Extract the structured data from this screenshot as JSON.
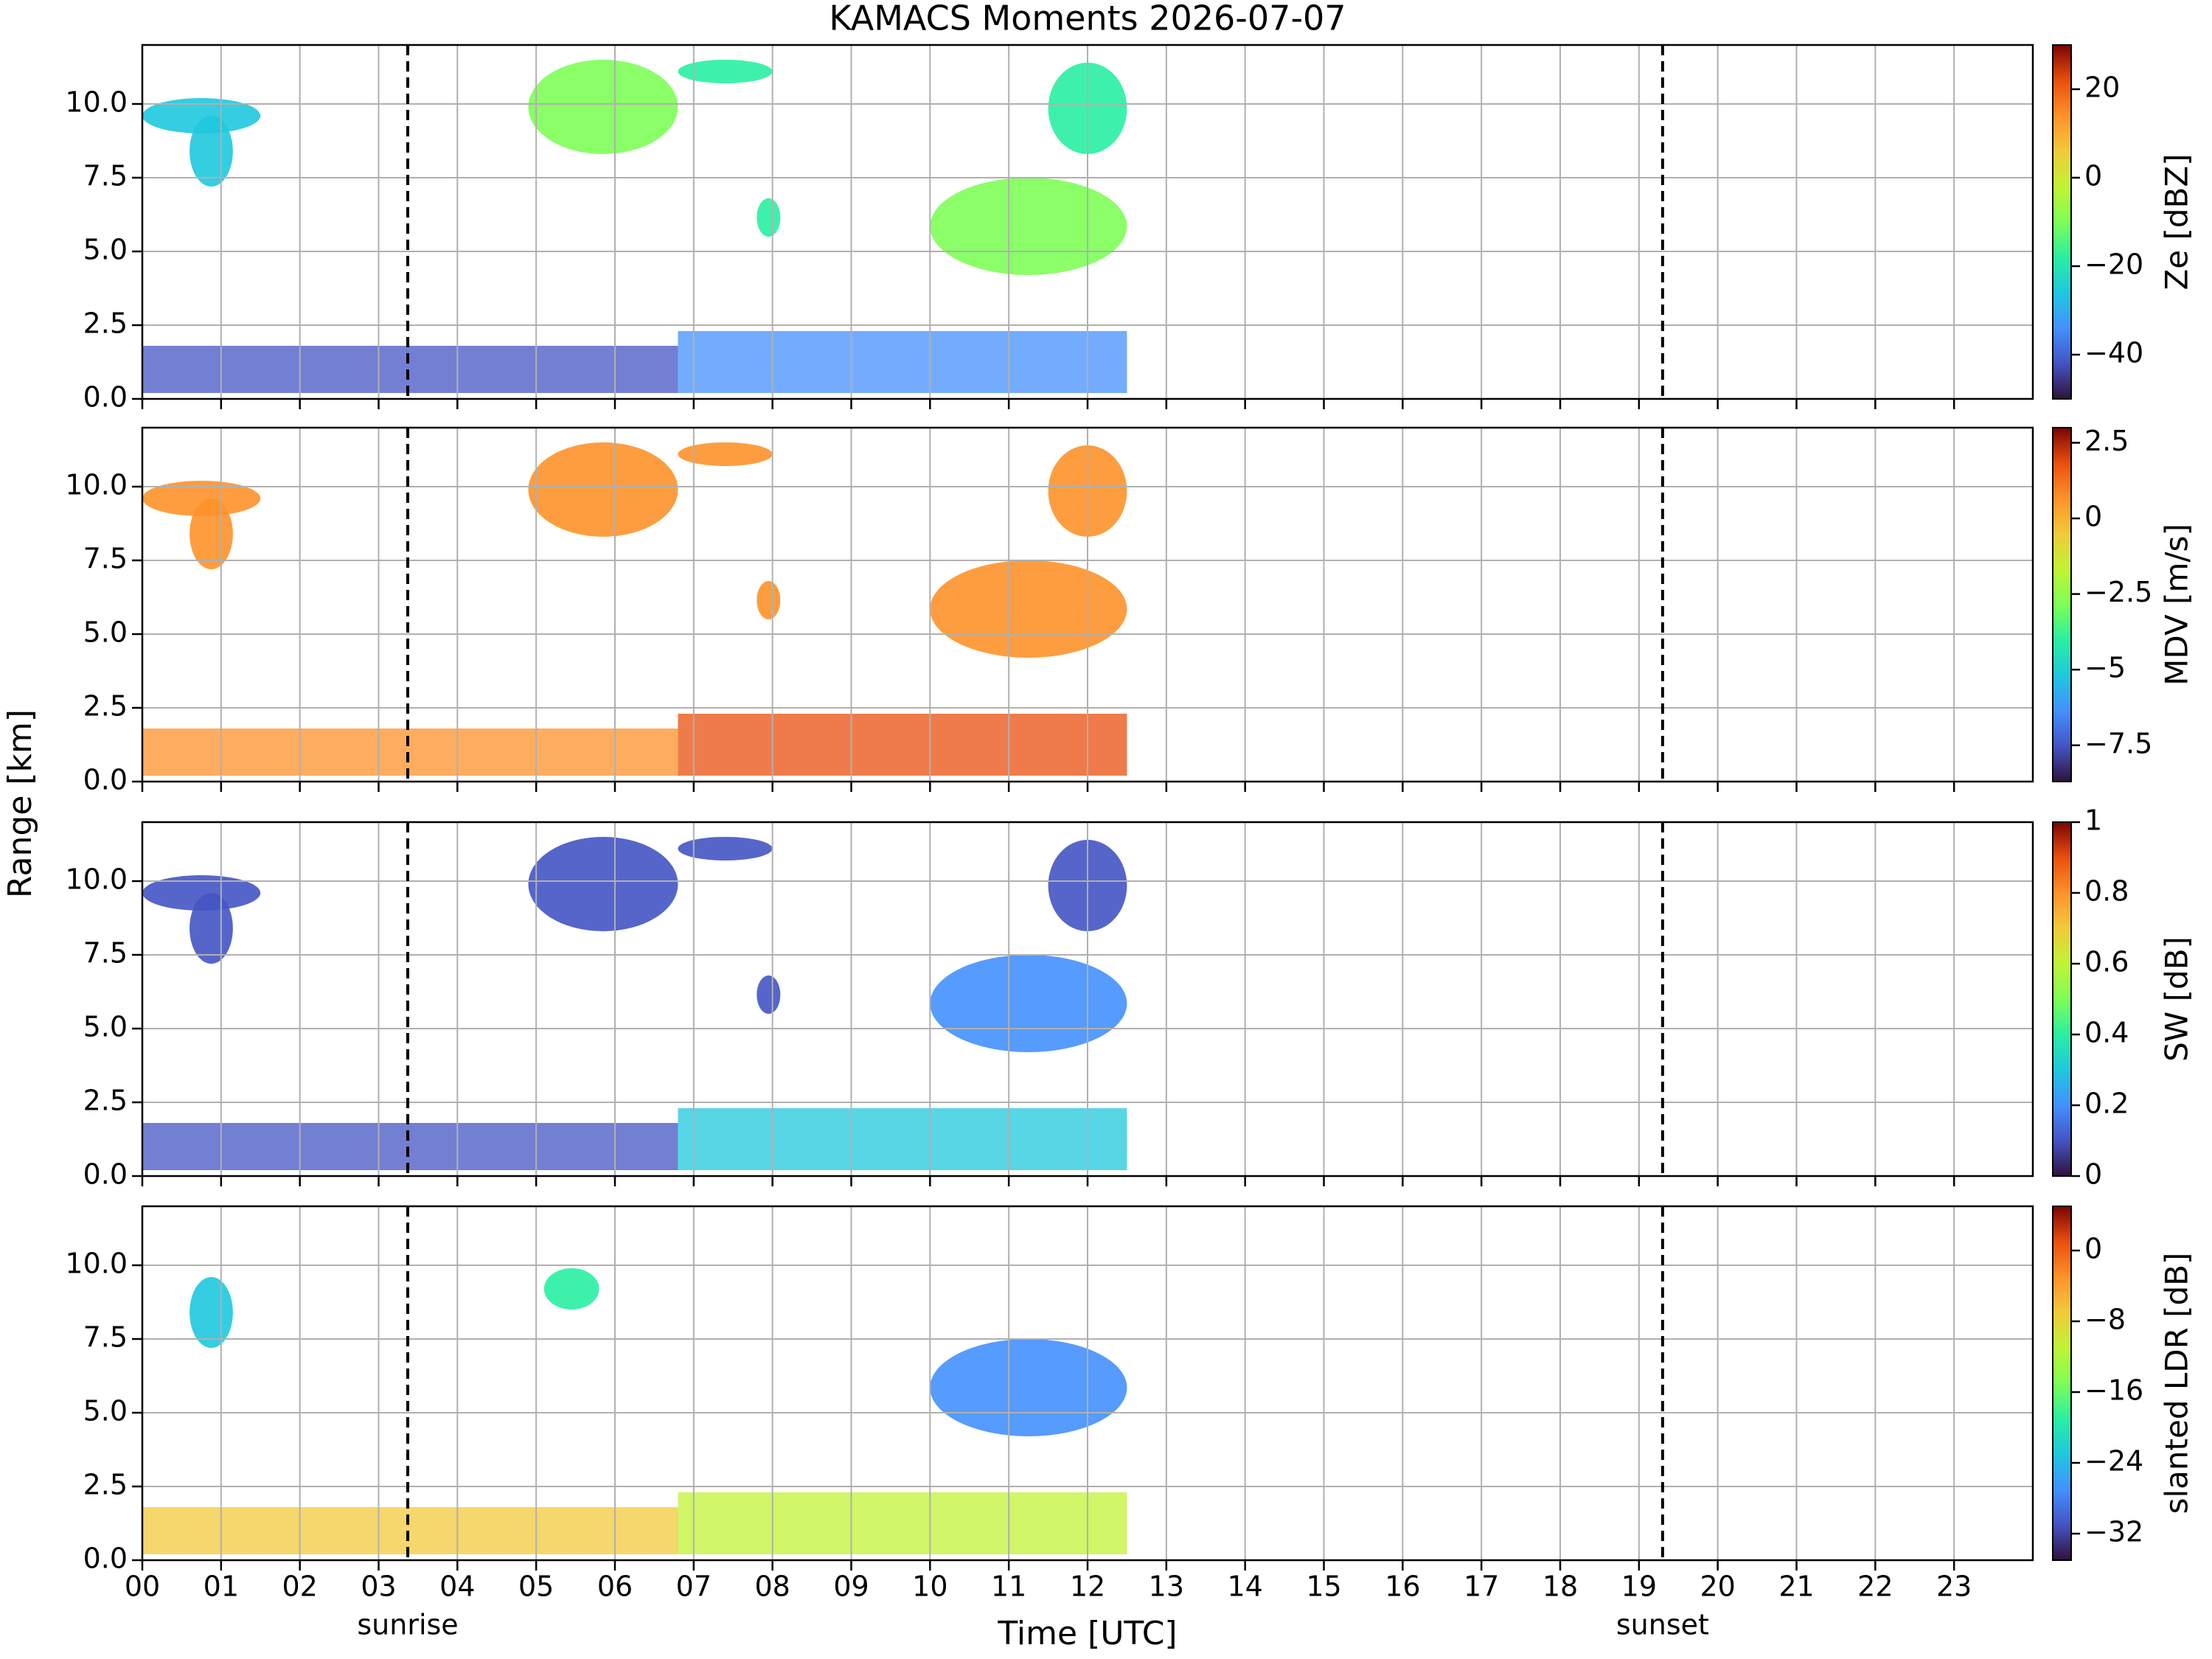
{
  "title": "KAMACS Moments 2026-07-07",
  "xlabel": "Time [UTC]",
  "ylabel": "Range [km]",
  "annotations": [
    {
      "text": "sunrise",
      "x": 3.37
    },
    {
      "text": "sunset",
      "x": 19.3
    }
  ],
  "chart_data": [
    {
      "type": "heatmap",
      "xlim": [
        0,
        24
      ],
      "ylim": [
        0,
        12
      ],
      "xticks": [
        {
          "value": 0,
          "label": "00"
        },
        {
          "value": 1,
          "label": "01"
        },
        {
          "value": 2,
          "label": "02"
        },
        {
          "value": 3,
          "label": "03"
        },
        {
          "value": 4,
          "label": "04"
        },
        {
          "value": 5,
          "label": "05"
        },
        {
          "value": 6,
          "label": "06"
        },
        {
          "value": 7,
          "label": "07"
        },
        {
          "value": 8,
          "label": "08"
        },
        {
          "value": 9,
          "label": "09"
        },
        {
          "value": 10,
          "label": "10"
        },
        {
          "value": 11,
          "label": "11"
        },
        {
          "value": 12,
          "label": "12"
        },
        {
          "value": 13,
          "label": "13"
        },
        {
          "value": 14,
          "label": "14"
        },
        {
          "value": 15,
          "label": "15"
        },
        {
          "value": 16,
          "label": "16"
        },
        {
          "value": 17,
          "label": "17"
        },
        {
          "value": 18,
          "label": "18"
        },
        {
          "value": 19,
          "label": "19"
        },
        {
          "value": 20,
          "label": "20"
        },
        {
          "value": 21,
          "label": "21"
        },
        {
          "value": 22,
          "label": "22"
        },
        {
          "value": 23,
          "label": "23"
        }
      ],
      "yticks": [
        {
          "value": 0,
          "label": "0.0"
        },
        {
          "value": 2.5,
          "label": "2.5"
        },
        {
          "value": 5,
          "label": "5.0"
        },
        {
          "value": 7.5,
          "label": "7.5"
        },
        {
          "value": 10,
          "label": "10.0"
        }
      ],
      "grid": true,
      "colorbar": {
        "label": "Ze [dBZ]",
        "cmap": "turbo",
        "lim": [
          -50,
          30
        ],
        "ticks": [
          {
            "value": -40,
            "label": "−40"
          },
          {
            "value": -20,
            "label": "−20"
          },
          0,
          20
        ]
      }
    },
    {
      "type": "heatmap",
      "xlim": [
        0,
        24
      ],
      "ylim": [
        0,
        12
      ],
      "xticks": [
        {
          "value": 0,
          "label": "00"
        },
        {
          "value": 1,
          "label": "01"
        },
        {
          "value": 2,
          "label": "02"
        },
        {
          "value": 3,
          "label": "03"
        },
        {
          "value": 4,
          "label": "04"
        },
        {
          "value": 5,
          "label": "05"
        },
        {
          "value": 6,
          "label": "06"
        },
        {
          "value": 7,
          "label": "07"
        },
        {
          "value": 8,
          "label": "08"
        },
        {
          "value": 9,
          "label": "09"
        },
        {
          "value": 10,
          "label": "10"
        },
        {
          "value": 11,
          "label": "11"
        },
        {
          "value": 12,
          "label": "12"
        },
        {
          "value": 13,
          "label": "13"
        },
        {
          "value": 14,
          "label": "14"
        },
        {
          "value": 15,
          "label": "15"
        },
        {
          "value": 16,
          "label": "16"
        },
        {
          "value": 17,
          "label": "17"
        },
        {
          "value": 18,
          "label": "18"
        },
        {
          "value": 19,
          "label": "19"
        },
        {
          "value": 20,
          "label": "20"
        },
        {
          "value": 21,
          "label": "21"
        },
        {
          "value": 22,
          "label": "22"
        },
        {
          "value": 23,
          "label": "23"
        }
      ],
      "yticks": [
        {
          "value": 0,
          "label": "0.0"
        },
        {
          "value": 2.5,
          "label": "2.5"
        },
        {
          "value": 5,
          "label": "5.0"
        },
        {
          "value": 7.5,
          "label": "7.5"
        },
        {
          "value": 10,
          "label": "10.0"
        }
      ],
      "grid": true,
      "colorbar": {
        "label": "MDV [m/s]",
        "cmap": "turbo",
        "lim": [
          -8.7,
          3
        ],
        "ticks": [
          {
            "value": -7.5,
            "label": "−7.5"
          },
          {
            "value": -5,
            "label": "−5"
          },
          {
            "value": -2.5,
            "label": "−2.5"
          },
          0,
          2.5
        ]
      }
    },
    {
      "type": "heatmap",
      "xlim": [
        0,
        24
      ],
      "ylim": [
        0,
        12
      ],
      "xticks": [
        {
          "value": 0,
          "label": "00"
        },
        {
          "value": 1,
          "label": "01"
        },
        {
          "value": 2,
          "label": "02"
        },
        {
          "value": 3,
          "label": "03"
        },
        {
          "value": 4,
          "label": "04"
        },
        {
          "value": 5,
          "label": "05"
        },
        {
          "value": 6,
          "label": "06"
        },
        {
          "value": 7,
          "label": "07"
        },
        {
          "value": 8,
          "label": "08"
        },
        {
          "value": 9,
          "label": "09"
        },
        {
          "value": 10,
          "label": "10"
        },
        {
          "value": 11,
          "label": "11"
        },
        {
          "value": 12,
          "label": "12"
        },
        {
          "value": 13,
          "label": "13"
        },
        {
          "value": 14,
          "label": "14"
        },
        {
          "value": 15,
          "label": "15"
        },
        {
          "value": 16,
          "label": "16"
        },
        {
          "value": 17,
          "label": "17"
        },
        {
          "value": 18,
          "label": "18"
        },
        {
          "value": 19,
          "label": "19"
        },
        {
          "value": 20,
          "label": "20"
        },
        {
          "value": 21,
          "label": "21"
        },
        {
          "value": 22,
          "label": "22"
        },
        {
          "value": 23,
          "label": "23"
        }
      ],
      "yticks": [
        {
          "value": 0,
          "label": "0.0"
        },
        {
          "value": 2.5,
          "label": "2.5"
        },
        {
          "value": 5,
          "label": "5.0"
        },
        {
          "value": 7.5,
          "label": "7.5"
        },
        {
          "value": 10,
          "label": "10.0"
        }
      ],
      "grid": true,
      "colorbar": {
        "label": "SW [dB]",
        "cmap": "turbo",
        "lim": [
          0,
          1
        ],
        "ticks": [
          0,
          0.2,
          0.4,
          0.6,
          0.8,
          1
        ]
      }
    },
    {
      "type": "heatmap",
      "xlim": [
        0,
        24
      ],
      "ylim": [
        0,
        12
      ],
      "xticks": [
        {
          "value": 0,
          "label": "00"
        },
        {
          "value": 1,
          "label": "01"
        },
        {
          "value": 2,
          "label": "02"
        },
        {
          "value": 3,
          "label": "03"
        },
        {
          "value": 4,
          "label": "04"
        },
        {
          "value": 5,
          "label": "05"
        },
        {
          "value": 6,
          "label": "06"
        },
        {
          "value": 7,
          "label": "07"
        },
        {
          "value": 8,
          "label": "08"
        },
        {
          "value": 9,
          "label": "09"
        },
        {
          "value": 10,
          "label": "10"
        },
        {
          "value": 11,
          "label": "11"
        },
        {
          "value": 12,
          "label": "12"
        },
        {
          "value": 13,
          "label": "13"
        },
        {
          "value": 14,
          "label": "14"
        },
        {
          "value": 15,
          "label": "15"
        },
        {
          "value": 16,
          "label": "16"
        },
        {
          "value": 17,
          "label": "17"
        },
        {
          "value": 18,
          "label": "18"
        },
        {
          "value": 19,
          "label": "19"
        },
        {
          "value": 20,
          "label": "20"
        },
        {
          "value": 21,
          "label": "21"
        },
        {
          "value": 22,
          "label": "22"
        },
        {
          "value": 23,
          "label": "23"
        }
      ],
      "yticks": [
        {
          "value": 0,
          "label": "0.0"
        },
        {
          "value": 2.5,
          "label": "2.5"
        },
        {
          "value": 5,
          "label": "5.0"
        },
        {
          "value": 7.5,
          "label": "7.5"
        },
        {
          "value": 10,
          "label": "10.0"
        }
      ],
      "grid": true,
      "colorbar": {
        "label": "slanted LDR [dB]",
        "cmap": "turbo",
        "lim": [
          -35,
          5
        ],
        "ticks": [
          {
            "value": -32,
            "label": "−32"
          },
          {
            "value": -24,
            "label": "−24"
          },
          {
            "value": -16,
            "label": "−16"
          },
          {
            "value": -8,
            "label": "−8"
          },
          0
        ]
      }
    }
  ]
}
